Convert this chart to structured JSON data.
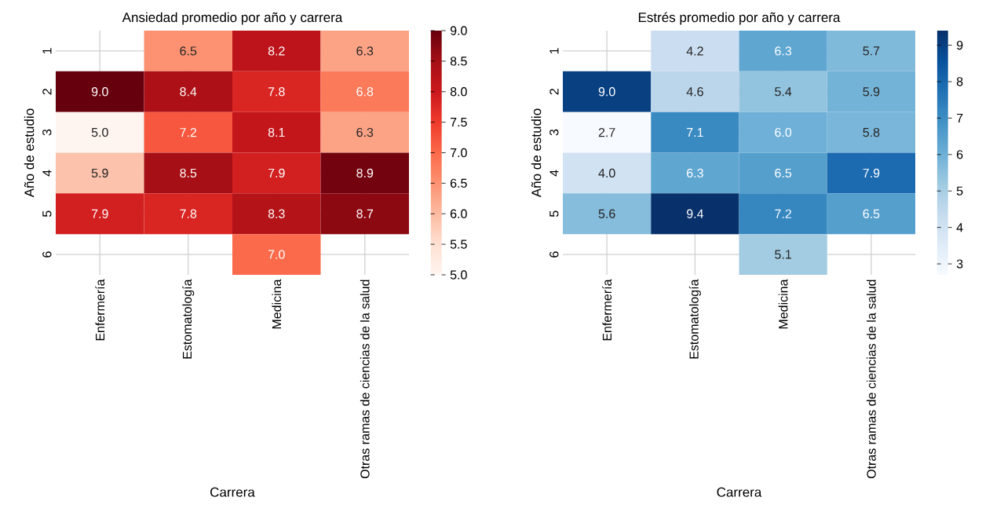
{
  "chart_data": [
    {
      "type": "heatmap",
      "title": "Ansiedad promedio por año y carrera",
      "xlabel": "Carrera",
      "ylabel": "Año de estudio",
      "categories": [
        "Enfermería",
        "Estomatología",
        "Medicina",
        "Otras ramas de ciencias de la salud"
      ],
      "y_categories": [
        "1",
        "2",
        "3",
        "4",
        "5",
        "6"
      ],
      "cells": [
        [
          null,
          6.5,
          8.2,
          6.3
        ],
        [
          9.0,
          8.4,
          7.8,
          6.8
        ],
        [
          5.0,
          7.2,
          8.1,
          6.3
        ],
        [
          5.9,
          8.5,
          7.9,
          8.9
        ],
        [
          7.9,
          7.8,
          8.3,
          8.7
        ],
        [
          null,
          null,
          7.0,
          null
        ]
      ],
      "cell_labels": [
        [
          null,
          "6.5",
          "8.2",
          "6.3"
        ],
        [
          "9.0",
          "8.4",
          "7.8",
          "6.8"
        ],
        [
          "5.0",
          "7.2",
          "8.1",
          "6.3"
        ],
        [
          "5.9",
          "8.5",
          "7.9",
          "8.9"
        ],
        [
          "7.9",
          "7.8",
          "8.3",
          "8.7"
        ],
        [
          null,
          null,
          "7.0",
          null
        ]
      ],
      "clim": [
        5.0,
        9.0
      ],
      "cticks": [
        {
          "value": 5.0,
          "label": "5.0"
        },
        {
          "value": 5.5,
          "label": "5.5"
        },
        {
          "value": 6.0,
          "label": "6.0"
        },
        {
          "value": 6.5,
          "label": "6.5"
        },
        {
          "value": 7.0,
          "label": "7.0"
        },
        {
          "value": 7.5,
          "label": "7.5"
        },
        {
          "value": 8.0,
          "label": "8.0"
        },
        {
          "value": 8.5,
          "label": "8.5"
        },
        {
          "value": 9.0,
          "label": "9.0"
        }
      ],
      "grid": true
    },
    {
      "type": "heatmap",
      "title": "Estrés promedio por año y carrera",
      "xlabel": "Carrera",
      "ylabel": "Año de estudio",
      "categories": [
        "Enfermería",
        "Estomatología",
        "Medicina",
        "Otras ramas de ciencias de la salud"
      ],
      "y_categories": [
        "1",
        "2",
        "3",
        "4",
        "5",
        "6"
      ],
      "cells": [
        [
          null,
          4.2,
          6.3,
          5.7
        ],
        [
          9.0,
          4.6,
          5.4,
          5.9
        ],
        [
          2.7,
          7.1,
          6.0,
          5.8
        ],
        [
          4.0,
          6.3,
          6.5,
          7.9
        ],
        [
          5.6,
          9.4,
          7.2,
          6.5
        ],
        [
          null,
          null,
          5.1,
          null
        ]
      ],
      "cell_labels": [
        [
          null,
          "4.2",
          "6.3",
          "5.7"
        ],
        [
          "9.0",
          "4.6",
          "5.4",
          "5.9"
        ],
        [
          "2.7",
          "7.1",
          "6.0",
          "5.8"
        ],
        [
          "4.0",
          "6.3",
          "6.5",
          "7.9"
        ],
        [
          "5.6",
          "9.4",
          "7.2",
          "6.5"
        ],
        [
          null,
          null,
          "5.1",
          null
        ]
      ],
      "clim": [
        2.7,
        9.4
      ],
      "cticks": [
        3,
        4,
        5,
        6,
        7,
        8,
        9
      ],
      "grid": true
    }
  ]
}
